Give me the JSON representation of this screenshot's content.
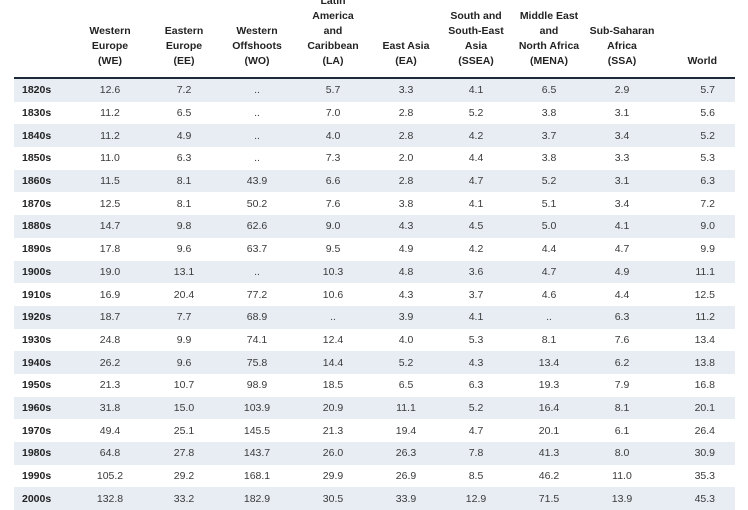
{
  "table": {
    "colors": {
      "row_stripe": "#e8edf4",
      "header_rule": "#1c2a38",
      "header_text": "#232323",
      "value_text": "#3a3a3a",
      "background": "#ffffff"
    },
    "missing_value_symbol": "..",
    "columns": [
      {
        "id": "we",
        "label": "Western Europe (WE)",
        "lines": [
          "Western",
          "Europe",
          "(WE)"
        ]
      },
      {
        "id": "ee",
        "label": "Eastern Europe (EE)",
        "lines": [
          "Eastern",
          "Europe",
          "(EE)"
        ]
      },
      {
        "id": "wo",
        "label": "Western Offshoots (WO)",
        "lines": [
          "Western",
          "Offshoots",
          "(WO)"
        ]
      },
      {
        "id": "la",
        "label": "Latin America and Caribbean (LA)",
        "lines": [
          "Latin",
          "America",
          "and",
          "Caribbean",
          "(LA)"
        ]
      },
      {
        "id": "ea",
        "label": "East Asia (EA)",
        "lines": [
          "East Asia",
          "(EA)"
        ]
      },
      {
        "id": "ssea",
        "label": "South and South-East Asia (SSEA)",
        "lines": [
          "South and",
          "South-East",
          "Asia",
          "(SSEA)"
        ]
      },
      {
        "id": "mena",
        "label": "Middle East and North Africa (MENA)",
        "lines": [
          "Middle East",
          "and",
          "North Africa",
          "(MENA)"
        ]
      },
      {
        "id": "ssa",
        "label": "Sub-Saharan Africa (SSA)",
        "lines": [
          "Sub-Saharan",
          "Africa",
          "(SSA)"
        ]
      },
      {
        "id": "world",
        "label": "World",
        "lines": [
          "World"
        ]
      }
    ],
    "rows": [
      {
        "decade": "1820s",
        "values": [
          "12.6",
          "7.2",
          "..",
          "5.7",
          "3.3",
          "4.1",
          "6.5",
          "2.9",
          "5.7"
        ]
      },
      {
        "decade": "1830s",
        "values": [
          "11.2",
          "6.5",
          "..",
          "7.0",
          "2.8",
          "5.2",
          "3.8",
          "3.1",
          "5.6"
        ]
      },
      {
        "decade": "1840s",
        "values": [
          "11.2",
          "4.9",
          "..",
          "4.0",
          "2.8",
          "4.2",
          "3.7",
          "3.4",
          "5.2"
        ]
      },
      {
        "decade": "1850s",
        "values": [
          "11.0",
          "6.3",
          "..",
          "7.3",
          "2.0",
          "4.4",
          "3.8",
          "3.3",
          "5.3"
        ]
      },
      {
        "decade": "1860s",
        "values": [
          "11.5",
          "8.1",
          "43.9",
          "6.6",
          "2.8",
          "4.7",
          "5.2",
          "3.1",
          "6.3"
        ]
      },
      {
        "decade": "1870s",
        "values": [
          "12.5",
          "8.1",
          "50.2",
          "7.6",
          "3.8",
          "4.1",
          "5.1",
          "3.4",
          "7.2"
        ]
      },
      {
        "decade": "1880s",
        "values": [
          "14.7",
          "9.8",
          "62.6",
          "9.0",
          "4.3",
          "4.5",
          "5.0",
          "4.1",
          "9.0"
        ]
      },
      {
        "decade": "1890s",
        "values": [
          "17.8",
          "9.6",
          "63.7",
          "9.5",
          "4.9",
          "4.2",
          "4.4",
          "4.7",
          "9.9"
        ]
      },
      {
        "decade": "1900s",
        "values": [
          "19.0",
          "13.1",
          "..",
          "10.3",
          "4.8",
          "3.6",
          "4.7",
          "4.9",
          "11.1"
        ]
      },
      {
        "decade": "1910s",
        "values": [
          "16.9",
          "20.4",
          "77.2",
          "10.6",
          "4.3",
          "3.7",
          "4.6",
          "4.4",
          "12.5"
        ]
      },
      {
        "decade": "1920s",
        "values": [
          "18.7",
          "7.7",
          "68.9",
          "..",
          "3.9",
          "4.1",
          "..",
          "6.3",
          "11.2"
        ]
      },
      {
        "decade": "1930s",
        "values": [
          "24.8",
          "9.9",
          "74.1",
          "12.4",
          "4.0",
          "5.3",
          "8.1",
          "7.6",
          "13.4"
        ]
      },
      {
        "decade": "1940s",
        "values": [
          "26.2",
          "9.6",
          "75.8",
          "14.4",
          "5.2",
          "4.3",
          "13.4",
          "6.2",
          "13.8"
        ]
      },
      {
        "decade": "1950s",
        "values": [
          "21.3",
          "10.7",
          "98.9",
          "18.5",
          "6.5",
          "6.3",
          "19.3",
          "7.9",
          "16.8"
        ]
      },
      {
        "decade": "1960s",
        "values": [
          "31.8",
          "15.0",
          "103.9",
          "20.9",
          "11.1",
          "5.2",
          "16.4",
          "8.1",
          "20.1"
        ]
      },
      {
        "decade": "1970s",
        "values": [
          "49.4",
          "25.1",
          "145.5",
          "21.3",
          "19.4",
          "4.7",
          "20.1",
          "6.1",
          "26.4"
        ]
      },
      {
        "decade": "1980s",
        "values": [
          "64.8",
          "27.8",
          "143.7",
          "26.0",
          "26.3",
          "7.8",
          "41.3",
          "8.0",
          "30.9"
        ]
      },
      {
        "decade": "1990s",
        "values": [
          "105.2",
          "29.2",
          "168.1",
          "29.9",
          "26.9",
          "8.5",
          "46.2",
          "11.0",
          "35.3"
        ]
      },
      {
        "decade": "2000s",
        "values": [
          "132.8",
          "33.2",
          "182.9",
          "30.5",
          "33.9",
          "12.9",
          "71.5",
          "13.9",
          "45.3"
        ]
      }
    ]
  }
}
